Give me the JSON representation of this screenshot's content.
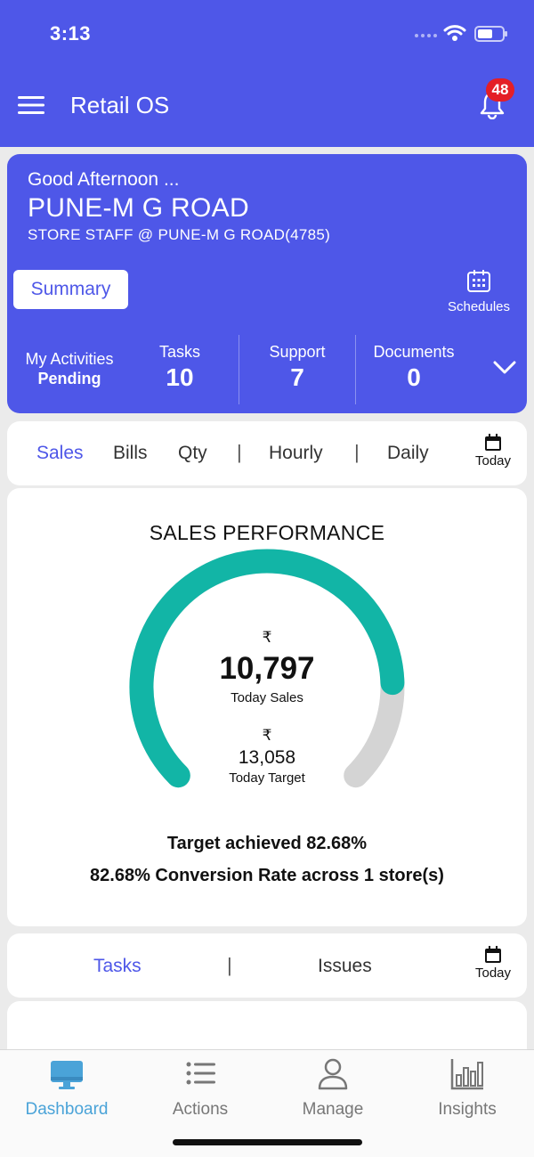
{
  "status_bar": {
    "time": "3:13"
  },
  "header": {
    "menu_icon": "hamburger-icon",
    "title": "Retail OS",
    "notification_count": "48",
    "bell_icon": "bell-icon"
  },
  "store": {
    "greeting": "Good Afternoon ...",
    "name": "PUNE-M G ROAD",
    "role": "STORE STAFF @ PUNE-M G ROAD(4785)",
    "summary_label": "Summary",
    "schedules_label": "Schedules",
    "activities_label": "My Activities",
    "activities_status": "Pending",
    "stats": [
      {
        "label": "Tasks",
        "value": "10"
      },
      {
        "label": "Support",
        "value": "7"
      },
      {
        "label": "Documents",
        "value": "0"
      }
    ]
  },
  "filters": {
    "tabs": [
      "Sales",
      "Bills",
      "Qty",
      "Hourly",
      "Daily"
    ],
    "separator": "|",
    "active": "Sales",
    "date_label": "Today"
  },
  "performance": {
    "title": "SALES PERFORMANCE",
    "currency": "₹",
    "today_sales": "10,797",
    "today_sales_label": "Today Sales",
    "today_target": "13,058",
    "today_target_label": "Today Target",
    "achieved_text": "Target achieved 82.68%",
    "conversion_text": "82.68% Conversion Rate across 1 store(s)",
    "achieved_fraction": 0.8268,
    "colors": {
      "progress": "#12b5a6",
      "track": "#d4d4d4"
    }
  },
  "tasks_panel": {
    "tabs": [
      "Tasks",
      "Issues"
    ],
    "separator": "|",
    "active": "Tasks",
    "date_label": "Today"
  },
  "bottom_nav": [
    {
      "label": "Dashboard",
      "icon": "monitor-icon",
      "active": true
    },
    {
      "label": "Actions",
      "icon": "list-icon",
      "active": false
    },
    {
      "label": "Manage",
      "icon": "user-icon",
      "active": false
    },
    {
      "label": "Insights",
      "icon": "bar-chart-icon",
      "active": false
    }
  ],
  "colors": {
    "brand": "#4e57e8",
    "accent_nav": "#4aa3d8",
    "badge": "#e41f26"
  }
}
